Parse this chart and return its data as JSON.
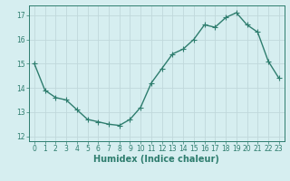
{
  "x": [
    0,
    1,
    2,
    3,
    4,
    5,
    6,
    7,
    8,
    9,
    10,
    11,
    12,
    13,
    14,
    15,
    16,
    17,
    18,
    19,
    20,
    21,
    22,
    23
  ],
  "y": [
    15.0,
    13.9,
    13.6,
    13.5,
    13.1,
    12.7,
    12.6,
    12.5,
    12.45,
    12.7,
    13.2,
    14.2,
    14.8,
    15.4,
    15.6,
    16.0,
    16.6,
    16.5,
    16.9,
    17.1,
    16.6,
    16.3,
    15.1,
    14.4
  ],
  "line_color": "#2e7d6e",
  "marker": "+",
  "markersize": 4,
  "linewidth": 1.0,
  "bg_color": "#d6eef0",
  "grid_color": "#c0d8db",
  "xlabel": "Humidex (Indice chaleur)",
  "ylim": [
    11.8,
    17.4
  ],
  "xlim": [
    -0.5,
    23.5
  ],
  "yticks": [
    12,
    13,
    14,
    15,
    16,
    17
  ],
  "xticks": [
    0,
    1,
    2,
    3,
    4,
    5,
    6,
    7,
    8,
    9,
    10,
    11,
    12,
    13,
    14,
    15,
    16,
    17,
    18,
    19,
    20,
    21,
    22,
    23
  ],
  "tick_fontsize": 5.5,
  "xlabel_fontsize": 7.0,
  "tick_color": "#2e7d6e",
  "spine_color": "#2e7d6e"
}
